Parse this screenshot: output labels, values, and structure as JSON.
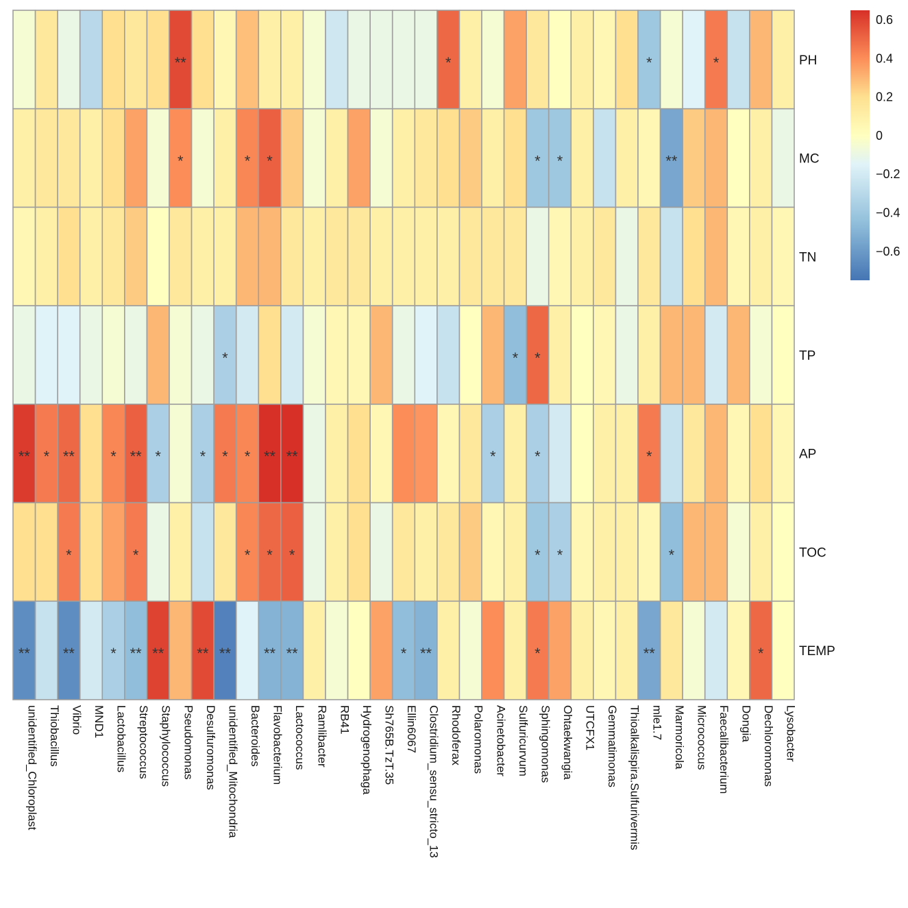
{
  "chart_data": {
    "type": "heatmap",
    "title": "",
    "rows": [
      "PH",
      "MC",
      "TN",
      "TP",
      "AP",
      "TOC",
      "TEMP"
    ],
    "columns": [
      "unidentified_Chloroplast",
      "Thiobacillus",
      "Vibrio",
      "MND1",
      "Lactobacillus",
      "Streptococcus",
      "Staphylococcus",
      "Pseudomonas",
      "Desulfuromonas",
      "unidentified_Mitochondria",
      "Bacteroides",
      "Flavobacterium",
      "Lactococcus",
      "Ramlibacter",
      "RB41",
      "Hydrogenophaga",
      "Sh765B.TzT.35",
      "Ellin6067",
      "Clostridium_sensu_stricto_13",
      "Rhodoferax",
      "Polaromonas",
      "Acinetobacter",
      "Sulfuricurvum",
      "Sphingomonas",
      "Ohtaekwangia",
      "UTCFX1",
      "Gemmatimonas",
      "Thioalkalispira.Sulfurivermis",
      "mle1.7",
      "Marmoricola",
      "Micrococcus",
      "Faecalibacterium",
      "Dongia",
      "Dechloromonas",
      "Lysobacter"
    ],
    "values": [
      [
        -0.05,
        0.15,
        -0.1,
        -0.3,
        0.2,
        0.15,
        0.2,
        0.58,
        0.2,
        0.05,
        0.28,
        0.1,
        0.1,
        -0.05,
        -0.22,
        -0.1,
        -0.1,
        -0.1,
        -0.1,
        0.5,
        0.1,
        -0.05,
        0.35,
        0.15,
        0.0,
        0.1,
        0.05,
        0.2,
        -0.4,
        -0.05,
        -0.15,
        0.45,
        -0.25,
        0.3,
        0.1
      ],
      [
        0.1,
        0.15,
        0.15,
        0.1,
        0.2,
        0.35,
        -0.05,
        0.4,
        -0.05,
        0.1,
        0.42,
        0.52,
        0.25,
        -0.05,
        0.1,
        0.35,
        -0.05,
        0.1,
        0.15,
        0.2,
        0.25,
        0.1,
        0.2,
        -0.4,
        -0.4,
        0.1,
        -0.25,
        0.1,
        0.05,
        -0.55,
        0.25,
        0.3,
        0.0,
        0.1,
        -0.1
      ],
      [
        0.05,
        0.1,
        0.2,
        0.1,
        0.15,
        0.25,
        0.0,
        0.15,
        0.1,
        0.1,
        0.3,
        0.3,
        0.15,
        0.1,
        0.15,
        0.15,
        0.1,
        0.1,
        0.1,
        0.1,
        0.15,
        0.15,
        0.15,
        -0.1,
        0.05,
        0.1,
        0.15,
        -0.1,
        0.15,
        -0.25,
        0.2,
        0.3,
        0.05,
        0.1,
        0.05
      ],
      [
        -0.1,
        -0.15,
        -0.15,
        -0.1,
        -0.05,
        -0.1,
        0.3,
        -0.05,
        -0.1,
        -0.35,
        -0.2,
        0.2,
        -0.2,
        -0.05,
        0.05,
        0.05,
        0.3,
        -0.1,
        -0.15,
        -0.25,
        0.0,
        0.3,
        -0.45,
        0.5,
        0.1,
        0.0,
        0.05,
        -0.1,
        0.1,
        0.3,
        0.3,
        -0.2,
        0.3,
        -0.05,
        0.0
      ],
      [
        0.62,
        0.45,
        0.5,
        0.2,
        0.42,
        0.52,
        -0.35,
        -0.05,
        -0.35,
        0.45,
        0.42,
        0.65,
        0.65,
        -0.1,
        0.1,
        0.2,
        0.05,
        0.4,
        0.38,
        0.05,
        0.15,
        -0.35,
        0.1,
        -0.35,
        -0.2,
        0.0,
        0.1,
        0.1,
        0.45,
        -0.25,
        0.15,
        0.3,
        0.05,
        0.2,
        0.05
      ],
      [
        0.2,
        0.2,
        0.45,
        0.2,
        0.35,
        0.45,
        -0.1,
        0.1,
        -0.25,
        0.15,
        0.42,
        0.5,
        0.52,
        -0.1,
        0.1,
        0.2,
        -0.1,
        0.15,
        0.1,
        0.15,
        0.25,
        0.05,
        0.1,
        -0.4,
        -0.35,
        0.05,
        0.1,
        0.1,
        0.05,
        -0.45,
        0.3,
        0.3,
        -0.05,
        0.1,
        0.0
      ],
      [
        -0.65,
        -0.25,
        -0.65,
        -0.2,
        -0.35,
        -0.45,
        0.6,
        0.3,
        0.58,
        -0.7,
        -0.15,
        -0.5,
        -0.5,
        0.1,
        -0.05,
        0.0,
        0.35,
        -0.45,
        -0.5,
        0.1,
        -0.05,
        0.4,
        0.1,
        0.45,
        0.35,
        0.1,
        0.05,
        0.1,
        -0.55,
        0.15,
        -0.05,
        -0.2,
        0.05,
        0.5,
        0.0
      ]
    ],
    "significance": [
      [
        "",
        "",
        "",
        "",
        "",
        "",
        "",
        "**",
        "",
        "",
        "",
        "",
        "",
        "",
        "",
        "",
        "",
        "",
        "",
        "*",
        "",
        "",
        "",
        "",
        "",
        "",
        "",
        "",
        "*",
        "",
        "",
        "*",
        "",
        "",
        ""
      ],
      [
        "",
        "",
        "",
        "",
        "",
        "",
        "",
        "*",
        "",
        "",
        "*",
        "*",
        "",
        "",
        "",
        "",
        "",
        "",
        "",
        "",
        "",
        "",
        "",
        "*",
        "*",
        "",
        "",
        "",
        "",
        "**",
        "",
        "",
        "",
        "",
        ""
      ],
      [
        "",
        "",
        "",
        "",
        "",
        "",
        "",
        "",
        "",
        "",
        "",
        "",
        "",
        "",
        "",
        "",
        "",
        "",
        "",
        "",
        "",
        "",
        "",
        "",
        "",
        "",
        "",
        "",
        "",
        "",
        "",
        "",
        "",
        "",
        ""
      ],
      [
        "",
        "",
        "",
        "",
        "",
        "",
        "",
        "",
        "",
        "*",
        "",
        "",
        "",
        "",
        "",
        "",
        "",
        "",
        "",
        "",
        "",
        "",
        "*",
        "*",
        "",
        "",
        "",
        "",
        "",
        "",
        "",
        "",
        "",
        "",
        ""
      ],
      [
        "**",
        "*",
        "**",
        "",
        "*",
        "**",
        "*",
        "",
        "*",
        "*",
        "*",
        "**",
        "**",
        "",
        "",
        "",
        "",
        "",
        "",
        "",
        "",
        "*",
        "",
        "*",
        "",
        "",
        "",
        "",
        "*",
        "",
        "",
        "",
        "",
        "",
        ""
      ],
      [
        "",
        "",
        "*",
        "",
        "",
        "*",
        "",
        "",
        "",
        "",
        "*",
        "*",
        "*",
        "",
        "",
        "",
        "",
        "",
        "",
        "",
        "",
        "",
        "",
        "*",
        "*",
        "",
        "",
        "",
        "",
        "*",
        "",
        "",
        "",
        "",
        ""
      ],
      [
        "**",
        "",
        "**",
        "",
        "*",
        "**",
        "**",
        "",
        "**",
        "**",
        "",
        "**",
        "**",
        "",
        "",
        "",
        "",
        "*",
        "**",
        "",
        "",
        "",
        "",
        "*",
        "",
        "",
        "",
        "",
        "**",
        "",
        "",
        "",
        "",
        "*",
        ""
      ]
    ],
    "color_scale": {
      "min": -0.75,
      "max": 0.65,
      "stops": [
        {
          "value": -0.75,
          "color": "#4575b4"
        },
        {
          "value": -0.45,
          "color": "#91bfdb"
        },
        {
          "value": -0.15,
          "color": "#e0f3f8"
        },
        {
          "value": 0.0,
          "color": "#ffffbf"
        },
        {
          "value": 0.2,
          "color": "#fee090"
        },
        {
          "value": 0.4,
          "color": "#fc8d59"
        },
        {
          "value": 0.65,
          "color": "#d73027"
        }
      ]
    },
    "legend": {
      "ticks": [
        0.6,
        0.4,
        0.2,
        0,
        -0.2,
        -0.4,
        -0.6
      ],
      "tick_labels": [
        "0.6",
        "0.4",
        "0.2",
        "0",
        "−0.2",
        "−0.4",
        "−0.6"
      ],
      "placement": "top-right"
    },
    "xlabel": "",
    "ylabel": ""
  }
}
